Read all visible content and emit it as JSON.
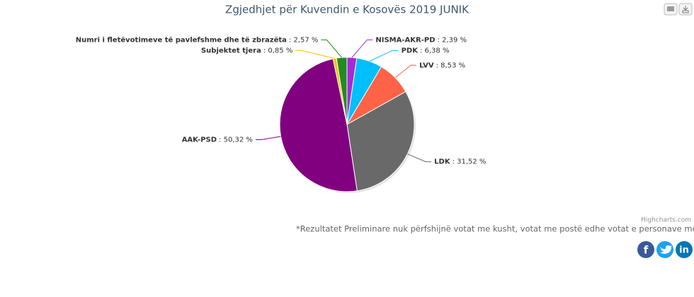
{
  "chart_data": {
    "type": "pie",
    "title": "Zgjedhjet për Kuvendin e Kosovës 2019 JUNIK",
    "categories": [
      "NISMA-AKR-PD",
      "PDK",
      "LVV",
      "LDK",
      "AAK-PSD",
      "Subjektet tjera",
      "Numri i fletëvotimeve të pavlefshme dhe të zbrazëta"
    ],
    "values": [
      2.39,
      6.38,
      8.53,
      31.52,
      50.32,
      0.85,
      2.57
    ],
    "value_labels": [
      ": 2,39 %",
      ": 6,38 %",
      ": 8,53 %",
      ": 31,52 %",
      ": 50,32 %",
      ": 0,85 %",
      ": 2,57 %"
    ],
    "colors": [
      "#a52ad8",
      "#00bfff",
      "#ff6347",
      "#696969",
      "#800080",
      "#ffc000",
      "#228b22"
    ],
    "credits": "Highcharts.com",
    "note": "*Rezultatet Preliminare nuk përfshijnë votat me kusht, votat me postë edhe votat e personave me nevoja te veçanta"
  },
  "share": {
    "facebook": "f",
    "linkedin": "in"
  }
}
